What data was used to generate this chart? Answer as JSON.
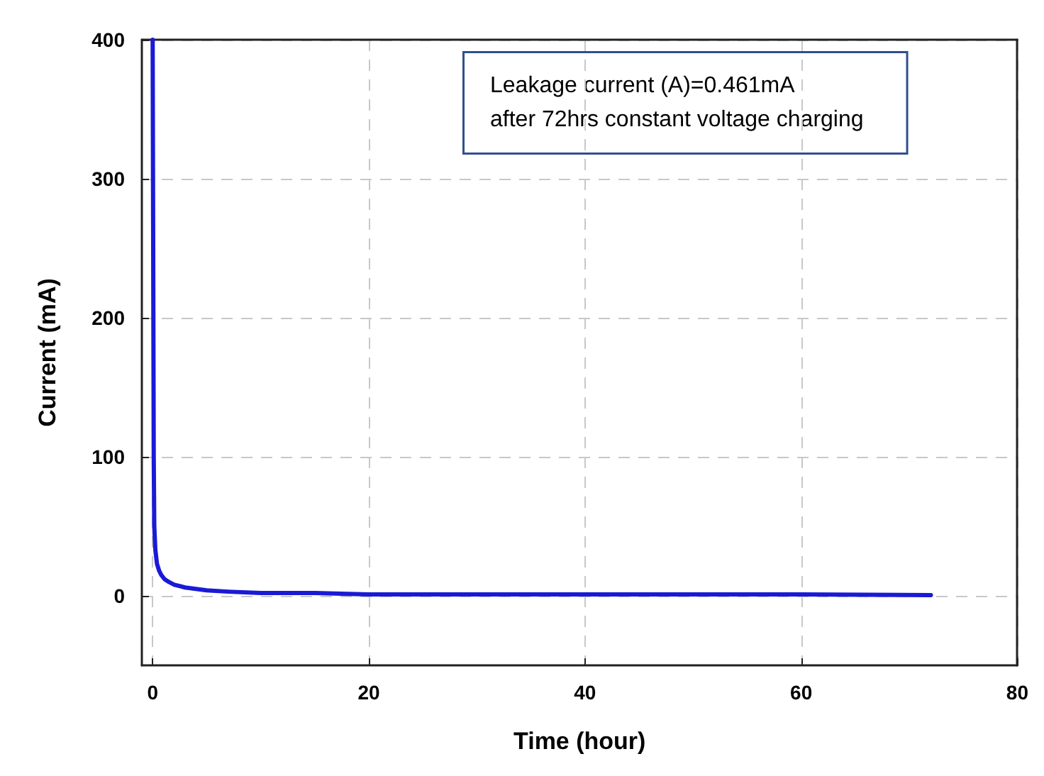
{
  "chart_data": {
    "type": "line",
    "xlabel": "Time (hour)",
    "ylabel": "Current (mA)",
    "annotations": [
      "Leakage current (A)=0.461mA\nafter 72hrs constant voltage charging"
    ],
    "xlim": [
      -1,
      80
    ],
    "xticks": [
      0,
      20,
      40,
      60,
      80
    ],
    "ylim": [
      -50,
      400
    ],
    "yticks": [
      0,
      100,
      200,
      300,
      400
    ],
    "grid": true,
    "marker": "none",
    "line_style": "solid",
    "series": [
      {
        "color": "#1a1ad6",
        "x": [
          0,
          0.05,
          0.1,
          0.15,
          0.25,
          0.4,
          0.6,
          0.8,
          1.1,
          1.5,
          2,
          3,
          4,
          5,
          7,
          10,
          15,
          20,
          30,
          40,
          50,
          60,
          72
        ],
        "values": [
          400,
          250,
          100,
          50,
          33,
          23,
          18,
          15,
          12,
          10,
          8,
          6,
          5,
          4,
          3,
          2,
          2,
          1,
          1,
          1,
          1,
          1,
          0.461
        ]
      }
    ]
  }
}
